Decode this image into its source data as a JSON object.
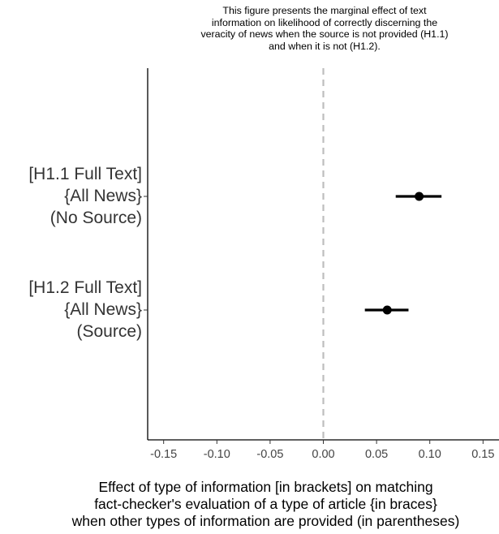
{
  "chart_data": {
    "type": "forest",
    "title": [
      "This figure presents the marginal effect of text",
      "information on likelihood of correctly discerning the",
      "veracity of news when the source is not provided (H1.1)",
      "and when it is not (H1.2)."
    ],
    "xlabel": [
      "Effect of type of information [in brackets] on matching",
      "fact-checker's evaluation of a type of article {in braces}",
      "when other types of information are provided (in parentheses)"
    ],
    "categories": [
      [
        "[H1.1 Full Text]",
        "{All News}",
        "(No Source)"
      ],
      [
        "[H1.2 Full Text]",
        "{All News}",
        "(Source)"
      ]
    ],
    "estimates": [
      0.09,
      0.06
    ],
    "ci_low": [
      0.068,
      0.039
    ],
    "ci_high": [
      0.111,
      0.08
    ],
    "xlim": [
      -0.165,
      0.165
    ],
    "xticks": [
      "-0.15",
      "-0.10",
      "-0.05",
      "0.00",
      "0.05",
      "0.10",
      "0.15"
    ],
    "xtick_values": [
      -0.15,
      -0.1,
      -0.05,
      0,
      0.05,
      0.1,
      0.15
    ],
    "reference_line": 0,
    "grid": false,
    "colors": {
      "point": "#000000",
      "reference": "#bdbdbd",
      "axis": "#000000"
    }
  }
}
